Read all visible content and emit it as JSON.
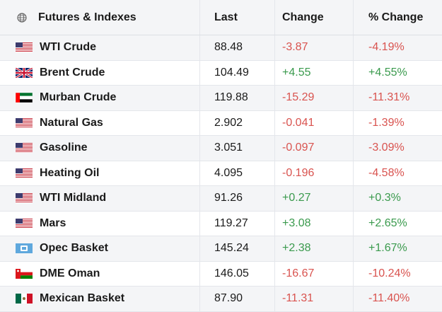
{
  "header": {
    "icon": "globe-icon",
    "name": "Futures & Indexes",
    "last": "Last",
    "change": "Change",
    "pct_change": "% Change"
  },
  "rows": [
    {
      "flag": "us",
      "name": "WTI Crude",
      "last": "88.48",
      "change": "-3.87",
      "pct": "-4.19%",
      "dir": "neg"
    },
    {
      "flag": "uk",
      "name": "Brent Crude",
      "last": "104.49",
      "change": "+4.55",
      "pct": "+4.55%",
      "dir": "pos"
    },
    {
      "flag": "uae",
      "name": "Murban Crude",
      "last": "119.88",
      "change": "-15.29",
      "pct": "-11.31%",
      "dir": "neg"
    },
    {
      "flag": "us",
      "name": "Natural Gas",
      "last": "2.902",
      "change": "-0.041",
      "pct": "-1.39%",
      "dir": "neg"
    },
    {
      "flag": "us",
      "name": "Gasoline",
      "last": "3.051",
      "change": "-0.097",
      "pct": "-3.09%",
      "dir": "neg"
    },
    {
      "flag": "us",
      "name": "Heating Oil",
      "last": "4.095",
      "change": "-0.196",
      "pct": "-4.58%",
      "dir": "neg"
    },
    {
      "flag": "us",
      "name": "WTI Midland",
      "last": "91.26",
      "change": "+0.27",
      "pct": "+0.3%",
      "dir": "pos"
    },
    {
      "flag": "us",
      "name": "Mars",
      "last": "119.27",
      "change": "+3.08",
      "pct": "+2.65%",
      "dir": "pos"
    },
    {
      "flag": "opec",
      "name": "Opec Basket",
      "last": "145.24",
      "change": "+2.38",
      "pct": "+1.67%",
      "dir": "pos"
    },
    {
      "flag": "oman",
      "name": "DME Oman",
      "last": "146.05",
      "change": "-16.67",
      "pct": "-10.24%",
      "dir": "neg"
    },
    {
      "flag": "mexico",
      "name": "Mexican Basket",
      "last": "87.90",
      "change": "-11.31",
      "pct": "-11.40%",
      "dir": "neg"
    }
  ],
  "colors": {
    "negative": "#d9534f",
    "positive": "#3a9a4d",
    "stripe": "#f4f5f7"
  }
}
